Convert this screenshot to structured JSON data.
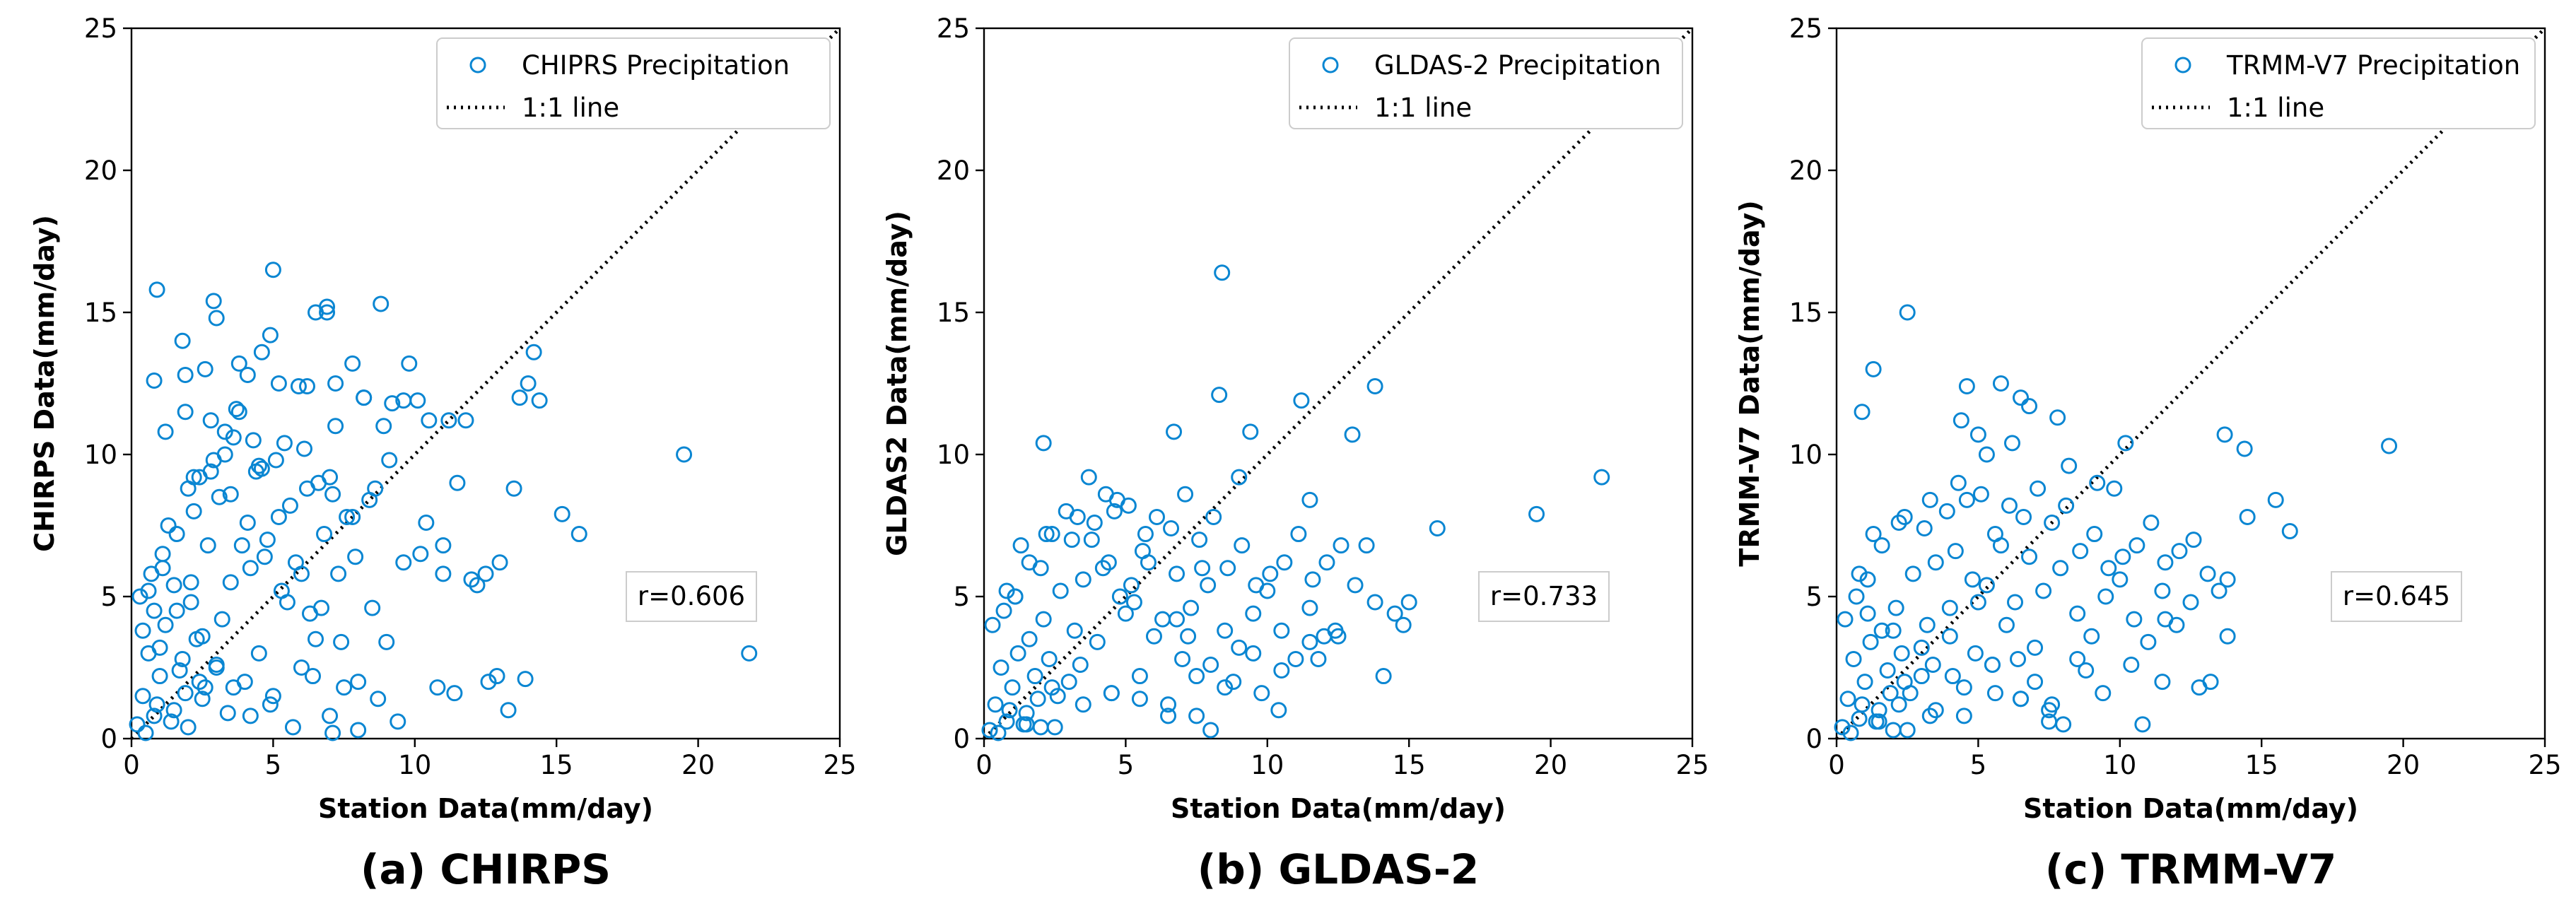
{
  "chart_data": [
    {
      "type": "scatter",
      "caption": "(a) CHIRPS",
      "xlabel": "Station Data(mm/day)",
      "ylabel": "CHIRPS Data(mm/day)",
      "xlim": [
        0,
        25
      ],
      "ylim": [
        0,
        25
      ],
      "xticks": [
        0,
        5,
        10,
        15,
        20,
        25
      ],
      "yticks": [
        0,
        5,
        10,
        15,
        20,
        25
      ],
      "legend": {
        "position": "upper-right",
        "scatter_label": "CHIPRS Precipitation",
        "line_label": "1:1 line"
      },
      "correlation": "r=0.606",
      "color": "#0a86d2",
      "series": [
        {
          "name": "CHIPRS Precipitation",
          "x": [
            0.2,
            0.4,
            0.6,
            0.8,
            1.0,
            1.2,
            1.5,
            1.8,
            2.0,
            2.3,
            2.6,
            3.0,
            0.3,
            0.7,
            1.1,
            1.6,
            2.1,
            2.7,
            3.2,
            0.5,
            0.9,
            1.4,
            1.9,
            2.4,
            0.4,
            1.0,
            1.7,
            2.5,
            3.4,
            4.0,
            4.5,
            5.0,
            5.5,
            6.0,
            6.5,
            7.0,
            7.5,
            8.0,
            3.5,
            4.2,
            4.8,
            5.3,
            5.8,
            6.3,
            6.8,
            7.3,
            7.9,
            8.5,
            9.0,
            1.3,
            2.2,
            3.1,
            3.9,
            4.6,
            5.6,
            6.6,
            7.6,
            8.6,
            9.6,
            0.8,
            1.6,
            2.4,
            3.3,
            4.3,
            5.1,
            6.1,
            7.1,
            0.6,
            1.2,
            1.9,
            2.8,
            3.6,
            4.4,
            5.2,
            6.2,
            7.2,
            8.2,
            9.2,
            10.2,
            11.0,
            12.0,
            13.0,
            0.9,
            1.8,
            2.9,
            3.8,
            4.9,
            5.9,
            6.9,
            7.8,
            8.8,
            9.8,
            10.5,
            11.5,
            12.5,
            13.5,
            14.0,
            15.2,
            15.8,
            19.5,
            21.8,
            0.8,
            1.9,
            2.6,
            3.0,
            3.7,
            4.1,
            4.6,
            5.0,
            6.5,
            6.9,
            7.2,
            8.2,
            8.9,
            9.6,
            10.1,
            11.2,
            11.8,
            13.7,
            14.2,
            14.4,
            2.2,
            2.9,
            3.3,
            3.8,
            4.5,
            5.4,
            6.2,
            7.0,
            7.8,
            8.4,
            9.1,
            10.4,
            11.0,
            12.2,
            12.9,
            2.0,
            2.8,
            3.5,
            4.1,
            4.7,
            5.2,
            6.0,
            6.7,
            7.4,
            8.0,
            8.7,
            9.4,
            1.1,
            1.5,
            2.1,
            2.5,
            3.0,
            3.6,
            4.2,
            4.9,
            5.7,
            6.4,
            7.1,
            10.8,
            11.4,
            12.6,
            13.3,
            13.9
          ],
          "y": [
            0.5,
            1.5,
            3.0,
            0.8,
            2.2,
            4.0,
            1.0,
            2.8,
            0.4,
            3.5,
            1.8,
            2.5,
            5.0,
            5.8,
            6.5,
            4.5,
            5.5,
            6.8,
            4.2,
            0.2,
            1.2,
            0.6,
            1.6,
            2.0,
            3.8,
            3.2,
            2.4,
            1.4,
            0.9,
            2.0,
            3.0,
            1.5,
            4.8,
            2.5,
            3.5,
            0.8,
            1.8,
            0.3,
            5.5,
            6.0,
            7.0,
            5.2,
            6.2,
            4.4,
            7.2,
            5.8,
            6.4,
            4.6,
            3.4,
            7.5,
            8.0,
            8.5,
            6.8,
            9.5,
            8.2,
            9.0,
            7.8,
            8.8,
            6.2,
            4.5,
            7.2,
            9.2,
            10.0,
            10.5,
            9.8,
            10.2,
            8.6,
            5.2,
            10.8,
            11.5,
            11.2,
            10.6,
            9.4,
            12.5,
            12.4,
            11.0,
            12.0,
            11.8,
            6.5,
            5.8,
            5.6,
            6.2,
            15.8,
            14.0,
            15.4,
            13.2,
            14.2,
            12.4,
            15.2,
            13.2,
            15.3,
            13.2,
            11.2,
            9.0,
            5.8,
            8.8,
            12.5,
            7.9,
            7.2,
            10.0,
            3.0,
            12.6,
            12.8,
            13.0,
            14.8,
            11.6,
            12.8,
            13.6,
            16.5,
            15.0,
            15.0,
            12.5,
            12.0,
            11.0,
            11.9,
            11.9,
            11.2,
            11.2,
            12.0,
            13.6,
            11.9,
            9.2,
            9.8,
            10.8,
            11.5,
            9.6,
            10.4,
            8.8,
            9.2,
            7.8,
            8.4,
            9.8,
            7.6,
            6.8,
            5.4,
            2.2,
            8.8,
            9.4,
            8.6,
            7.6,
            6.4,
            7.8,
            5.8,
            4.6,
            3.4,
            2.0,
            1.4,
            0.6,
            6.0,
            5.4,
            4.8,
            3.6,
            2.6,
            1.8,
            0.8,
            1.2,
            0.4,
            2.2,
            0.2,
            1.8,
            1.6,
            2.0,
            1.0,
            2.1
          ]
        }
      ]
    },
    {
      "type": "scatter",
      "caption": "(b) GLDAS-2",
      "xlabel": "Station Data(mm/day)",
      "ylabel": "GLDAS2 Data(mm/day)",
      "xlim": [
        0,
        25
      ],
      "ylim": [
        0,
        25
      ],
      "xticks": [
        0,
        5,
        10,
        15,
        20,
        25
      ],
      "yticks": [
        0,
        5,
        10,
        15,
        20,
        25
      ],
      "legend": {
        "position": "upper-right",
        "scatter_label": "GLDAS-2 Precipitation",
        "line_label": "1:1 line"
      },
      "correlation": "r=0.733",
      "color": "#0a86d2",
      "series": [
        {
          "name": "GLDAS-2 Precipitation",
          "x": [
            0.2,
            0.4,
            0.6,
            0.8,
            1.0,
            1.2,
            1.5,
            1.8,
            2.0,
            2.3,
            2.6,
            3.0,
            0.3,
            0.7,
            1.1,
            1.6,
            2.1,
            2.7,
            3.2,
            0.5,
            0.9,
            1.4,
            1.9,
            2.4,
            3.4,
            4.0,
            4.5,
            5.0,
            5.5,
            6.0,
            6.5,
            7.0,
            7.5,
            8.0,
            3.5,
            4.2,
            4.8,
            5.3,
            5.8,
            6.3,
            6.8,
            7.3,
            7.9,
            8.5,
            9.0,
            9.5,
            10.0,
            10.5,
            11.0,
            11.5,
            12.0,
            1.3,
            2.2,
            3.1,
            3.9,
            4.6,
            5.6,
            6.6,
            7.6,
            8.6,
            9.6,
            10.6,
            11.6,
            12.6,
            13.5,
            14.5,
            15.0,
            16.0,
            19.5,
            21.8,
            0.8,
            1.6,
            2.4,
            3.3,
            4.3,
            5.1,
            6.1,
            7.1,
            8.1,
            9.1,
            10.1,
            11.1,
            12.1,
            13.1,
            14.1,
            1.1,
            2.0,
            2.9,
            3.7,
            4.7,
            5.7,
            6.7,
            7.7,
            8.3,
            8.4,
            9.0,
            9.4,
            11.2,
            11.5,
            13.0,
            13.8,
            2.1,
            3.8,
            4.4,
            5.2,
            6.8,
            7.2,
            8.0,
            8.8,
            9.8,
            10.4,
            11.8,
            12.5,
            13.8,
            14.8,
            1.5,
            2.5,
            3.5,
            4.5,
            5.5,
            6.5,
            7.5,
            8.5,
            9.5,
            10.5,
            11.5,
            12.4
          ],
          "y": [
            0.3,
            1.2,
            2.5,
            0.6,
            1.8,
            3.0,
            0.9,
            2.2,
            0.4,
            2.8,
            1.5,
            2.0,
            4.0,
            4.5,
            5.0,
            3.5,
            4.2,
            5.2,
            3.8,
            0.2,
            1.0,
            0.5,
            1.4,
            1.8,
            2.6,
            3.4,
            1.6,
            4.4,
            2.2,
            3.6,
            1.2,
            2.8,
            0.8,
            0.3,
            5.6,
            6.0,
            5.0,
            4.8,
            6.2,
            4.2,
            5.8,
            4.6,
            5.4,
            3.8,
            3.2,
            4.4,
            5.2,
            3.8,
            2.8,
            4.6,
            3.6,
            6.8,
            7.2,
            7.0,
            7.6,
            8.0,
            6.6,
            7.4,
            7.0,
            6.0,
            5.4,
            6.2,
            5.6,
            6.8,
            6.8,
            4.4,
            4.8,
            7.4,
            7.9,
            9.2,
            5.2,
            6.2,
            7.2,
            7.8,
            8.6,
            8.2,
            7.8,
            8.6,
            7.8,
            6.8,
            5.8,
            7.2,
            6.2,
            5.4,
            2.2,
            5.0,
            6.0,
            8.0,
            9.2,
            8.4,
            7.2,
            10.8,
            6.0,
            12.1,
            16.4,
            9.2,
            10.8,
            11.9,
            8.4,
            10.7,
            12.4,
            10.4,
            7.0,
            6.2,
            5.4,
            4.2,
            3.6,
            2.6,
            2.0,
            1.6,
            1.0,
            2.8,
            3.6,
            4.8,
            4.0,
            0.5,
            0.4,
            1.2,
            1.6,
            1.4,
            0.8,
            2.2,
            1.8,
            3.0,
            2.4,
            3.4,
            3.8
          ]
        }
      ]
    },
    {
      "type": "scatter",
      "caption": "(c) TRMM-V7",
      "xlabel": "Station Data(mm/day)",
      "ylabel": "TRMM-V7 Data(mm/day)",
      "xlim": [
        0,
        25
      ],
      "ylim": [
        0,
        25
      ],
      "xticks": [
        0,
        5,
        10,
        15,
        20,
        25
      ],
      "yticks": [
        0,
        5,
        10,
        15,
        20,
        25
      ],
      "legend": {
        "position": "upper-right",
        "scatter_label": "TRMM-V7 Precipitation",
        "line_label": "1:1 line"
      },
      "correlation": "r=0.645",
      "color": "#0a86d2",
      "series": [
        {
          "name": "TRMM-V7 Precipitation",
          "x": [
            0.2,
            0.4,
            0.6,
            0.8,
            1.0,
            1.2,
            1.5,
            1.8,
            2.0,
            2.3,
            2.6,
            3.0,
            0.3,
            0.7,
            1.1,
            1.6,
            2.1,
            2.7,
            3.2,
            0.5,
            0.9,
            1.4,
            1.9,
            2.4,
            3.4,
            4.0,
            4.5,
            5.0,
            5.5,
            6.0,
            6.5,
            7.0,
            7.5,
            8.0,
            3.5,
            4.2,
            4.8,
            5.3,
            5.8,
            6.3,
            6.8,
            7.3,
            7.9,
            8.5,
            9.0,
            9.5,
            10.0,
            10.5,
            11.0,
            11.5,
            12.0,
            1.3,
            2.2,
            3.1,
            3.9,
            4.6,
            5.6,
            6.6,
            7.6,
            8.6,
            9.6,
            10.6,
            11.6,
            12.6,
            13.5,
            14.5,
            15.5,
            16.0,
            19.5,
            0.8,
            1.6,
            2.4,
            3.3,
            4.3,
            5.1,
            6.1,
            7.1,
            8.1,
            9.1,
            10.1,
            11.1,
            12.1,
            13.1,
            13.8,
            0.9,
            1.3,
            2.5,
            4.4,
            4.6,
            5.0,
            5.3,
            5.8,
            6.2,
            6.5,
            6.8,
            7.8,
            8.2,
            9.2,
            9.8,
            10.2,
            13.7,
            14.4,
            2.2,
            3.3,
            4.1,
            4.9,
            5.6,
            6.4,
            7.0,
            7.6,
            8.8,
            9.4,
            10.8,
            11.6,
            12.8,
            13.8,
            1.5,
            2.5,
            3.5,
            4.5,
            5.5,
            6.5,
            7.5,
            8.5,
            10.4,
            11.5,
            12.5,
            13.2,
            1.1,
            2.0,
            3.0,
            4.0
          ],
          "y": [
            0.4,
            1.4,
            2.8,
            0.7,
            2.0,
            3.4,
            1.0,
            2.4,
            0.3,
            3.0,
            1.6,
            2.2,
            4.2,
            5.0,
            5.6,
            3.8,
            4.6,
            5.8,
            4.0,
            0.2,
            1.2,
            0.6,
            1.6,
            2.0,
            2.6,
            3.6,
            1.8,
            4.8,
            2.6,
            4.0,
            1.4,
            3.2,
            1.0,
            0.5,
            6.2,
            6.6,
            5.6,
            5.4,
            6.8,
            4.8,
            6.4,
            5.2,
            6.0,
            4.4,
            3.6,
            5.0,
            5.6,
            4.2,
            3.4,
            5.2,
            4.0,
            7.2,
            7.6,
            7.4,
            8.0,
            8.4,
            7.2,
            7.8,
            7.6,
            6.6,
            6.0,
            6.8,
            6.2,
            7.0,
            5.2,
            7.8,
            8.4,
            7.3,
            10.3,
            5.8,
            6.8,
            7.8,
            8.4,
            9.0,
            8.6,
            8.2,
            8.8,
            8.2,
            7.2,
            6.4,
            7.6,
            6.6,
            5.8,
            5.6,
            11.5,
            13.0,
            15.0,
            11.2,
            12.4,
            10.7,
            10.0,
            12.5,
            10.4,
            12.0,
            11.7,
            11.3,
            9.6,
            9.0,
            8.8,
            10.4,
            10.7,
            10.2,
            1.2,
            0.8,
            2.2,
            3.0,
            1.6,
            2.8,
            2.0,
            1.2,
            2.4,
            1.6,
            0.5,
            4.2,
            1.8,
            3.6,
            0.6,
            0.3,
            1.0,
            0.8,
            2.6,
            1.4,
            0.6,
            2.8,
            2.6,
            2.0,
            4.8,
            2.0,
            4.4,
            3.8,
            3.2,
            4.6
          ]
        }
      ]
    }
  ]
}
